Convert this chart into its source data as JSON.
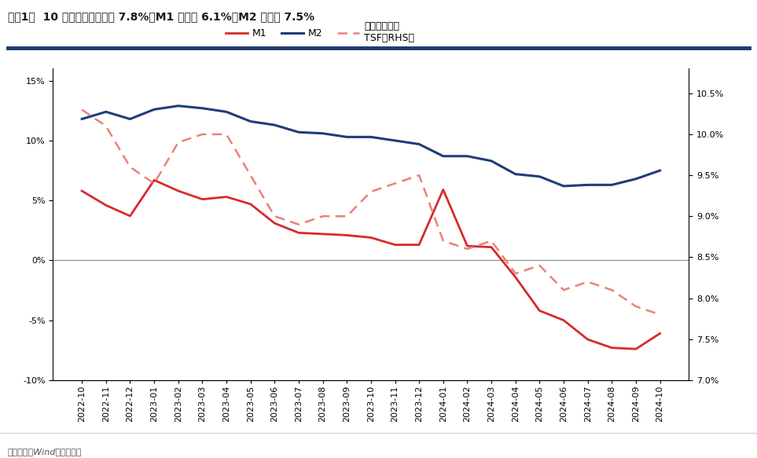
{
  "title": "图袅1：  10 月社融存量同比增 7.8%、M1 同比减 6.1%、M2 同比增 7.5%",
  "source_text": "资料来源：Wind，中信建投",
  "x_labels": [
    "2022-10",
    "2022-11",
    "2022-12",
    "2023-01",
    "2023-02",
    "2023-03",
    "2023-04",
    "2023-05",
    "2023-06",
    "2023-07",
    "2023-08",
    "2023-09",
    "2023-10",
    "2023-11",
    "2023-12",
    "2024-01",
    "2024-02",
    "2024-03",
    "2024-04",
    "2024-05",
    "2024-06",
    "2024-07",
    "2024-08",
    "2024-09",
    "2024-10"
  ],
  "M1": [
    5.8,
    4.6,
    3.7,
    6.7,
    5.8,
    5.1,
    5.3,
    4.7,
    3.1,
    2.3,
    2.2,
    2.1,
    1.9,
    1.3,
    1.3,
    5.9,
    1.2,
    1.1,
    -1.4,
    -4.2,
    -5.0,
    -6.6,
    -7.3,
    -7.4,
    -6.1
  ],
  "M2": [
    11.8,
    12.4,
    11.8,
    12.6,
    12.9,
    12.7,
    12.4,
    11.6,
    11.3,
    10.7,
    10.6,
    10.3,
    10.3,
    10.0,
    9.7,
    8.7,
    8.7,
    8.3,
    7.2,
    7.0,
    6.2,
    6.3,
    6.3,
    6.8,
    7.5
  ],
  "TSF": [
    10.3,
    10.1,
    9.6,
    9.4,
    9.9,
    10.0,
    10.0,
    9.5,
    9.0,
    8.9,
    9.0,
    9.0,
    9.3,
    9.4,
    9.5,
    8.7,
    8.6,
    8.7,
    8.3,
    8.4,
    8.1,
    8.2,
    8.1,
    7.9,
    7.8
  ],
  "M1_color": "#d9292c",
  "M2_color": "#1f3d7a",
  "TSF_color": "#e8827a",
  "ylim_left": [
    -10,
    16
  ],
  "ylim_right": [
    7.0,
    10.8
  ],
  "yticks_left": [
    -10,
    -5,
    0,
    5,
    10,
    15
  ],
  "yticks_right": [
    7.0,
    7.5,
    8.0,
    8.5,
    9.0,
    9.5,
    10.0,
    10.5
  ],
  "title_fontsize": 10,
  "source_fontsize": 8,
  "tick_fontsize": 8,
  "legend_fontsize": 9
}
